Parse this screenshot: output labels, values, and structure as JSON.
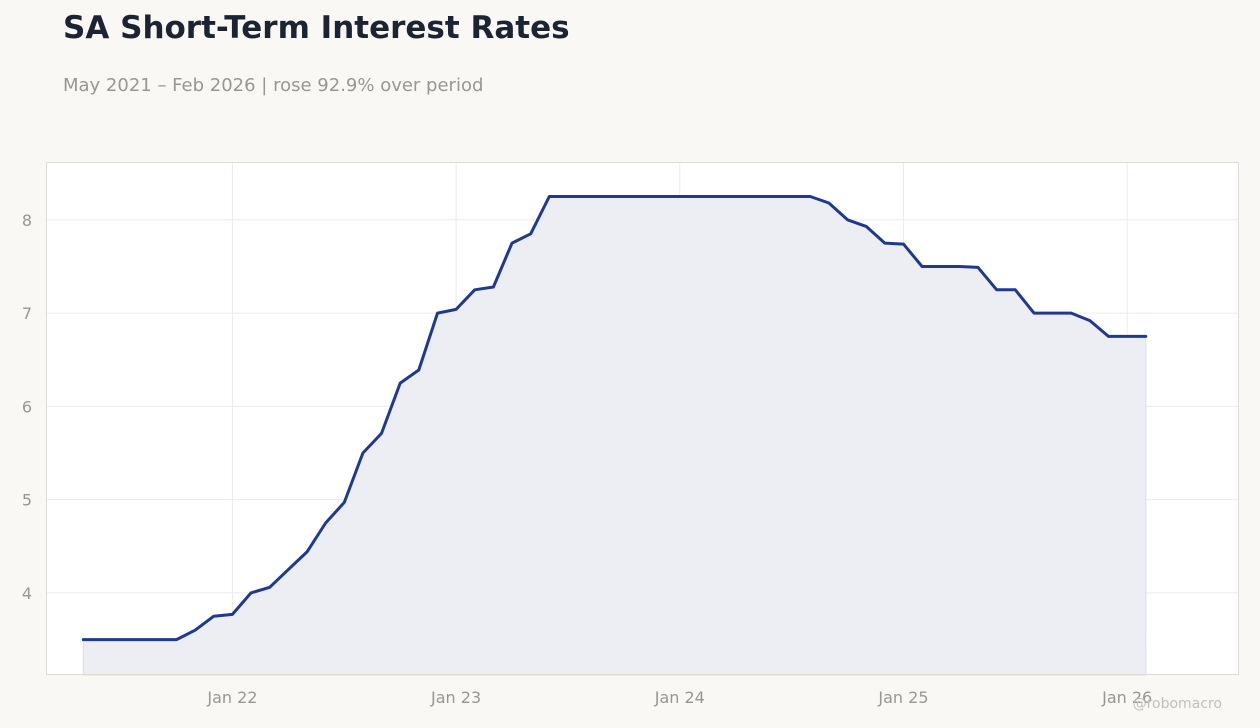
{
  "header": {
    "title": "SA Short-Term Interest Rates",
    "subtitle": "May 2021 – Feb 2026 | rose 92.9% over period"
  },
  "watermark": "@robomacro",
  "colors": {
    "line": "#1f3a8a",
    "area": "#edeef4",
    "plot_background": "#ffffff",
    "page_background": "#f9f8f5",
    "grid": "#ecebe8",
    "tick_text": "#9a9690"
  },
  "chart_data": {
    "type": "area",
    "title": "SA Short-Term Interest Rates",
    "subtitle": "May 2021 – Feb 2026 | rose 92.9% over period",
    "xlabel": "",
    "ylabel": "",
    "grid": true,
    "x_ticks": [
      {
        "date": "2022-01",
        "label": "Jan 22"
      },
      {
        "date": "2023-01",
        "label": "Jan 23"
      },
      {
        "date": "2024-01",
        "label": "Jan 24"
      },
      {
        "date": "2025-01",
        "label": "Jan 25"
      },
      {
        "date": "2026-01",
        "label": "Jan 26"
      }
    ],
    "y_ticks": [
      4,
      5,
      6,
      7,
      8
    ],
    "xlim": [
      "2021-03",
      "2026-07"
    ],
    "ylim": [
      3.12,
      8.62
    ],
    "series": [
      {
        "x": [
          "2021-05",
          "2021-06",
          "2021-07",
          "2021-08",
          "2021-09",
          "2021-10",
          "2021-11",
          "2021-12",
          "2022-01",
          "2022-02",
          "2022-03",
          "2022-04",
          "2022-05",
          "2022-06",
          "2022-07",
          "2022-08",
          "2022-09",
          "2022-10",
          "2022-11",
          "2022-12",
          "2023-01",
          "2023-02",
          "2023-03",
          "2023-04",
          "2023-05",
          "2023-06",
          "2023-07",
          "2023-08",
          "2023-09",
          "2023-10",
          "2023-11",
          "2023-12",
          "2024-01",
          "2024-02",
          "2024-03",
          "2024-04",
          "2024-05",
          "2024-06",
          "2024-07",
          "2024-08",
          "2024-09",
          "2024-10",
          "2024-11",
          "2024-12",
          "2025-01",
          "2025-02",
          "2025-03",
          "2025-04",
          "2025-05",
          "2025-06",
          "2025-07",
          "2025-08",
          "2025-09",
          "2025-10",
          "2025-11",
          "2025-12",
          "2026-01",
          "2026-02"
        ],
        "values": [
          3.5,
          3.5,
          3.5,
          3.5,
          3.5,
          3.5,
          3.6,
          3.75,
          3.77,
          4.0,
          4.06,
          4.25,
          4.44,
          4.75,
          4.97,
          5.5,
          5.71,
          6.25,
          6.39,
          7.0,
          7.04,
          7.25,
          7.28,
          7.75,
          7.85,
          8.25,
          8.25,
          8.25,
          8.25,
          8.25,
          8.25,
          8.25,
          8.25,
          8.25,
          8.25,
          8.25,
          8.25,
          8.25,
          8.25,
          8.25,
          8.18,
          8.0,
          7.93,
          7.75,
          7.74,
          7.5,
          7.5,
          7.5,
          7.49,
          7.25,
          7.25,
          7.0,
          7.0,
          7.0,
          6.92,
          6.75,
          6.75,
          6.75
        ]
      }
    ]
  }
}
